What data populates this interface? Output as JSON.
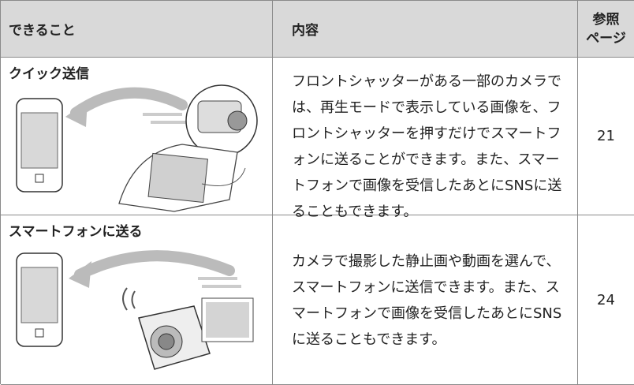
{
  "header": {
    "feature": "できること",
    "content": "内容",
    "reference_lines": [
      "参照",
      "ページ"
    ]
  },
  "rows": [
    {
      "feature": "クイック送信",
      "description": "フロントシャッターがある一部のカメラでは、再生モードで表示している画像を、フロントシャッターを押すだけでスマートフォンに送ることができます。また、スマートフォンで画像を受信したあとにSNSに送ることもできます。",
      "page": 21
    },
    {
      "feature": "スマートフォンに送る",
      "description": "カメラで撮影した静止画や動画を選んで、スマートフォンに送信できます。また、スマートフォンで画像を受信したあとにSNSに送ることもできます。",
      "page": 24
    }
  ]
}
